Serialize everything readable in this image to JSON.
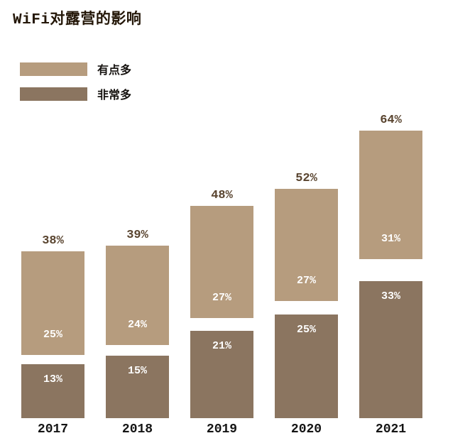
{
  "title": "WiFi对露营的影响",
  "legend": {
    "items": [
      {
        "label": "有点多",
        "color": "#b69c7e"
      },
      {
        "label": "非常多",
        "color": "#8b7560"
      }
    ]
  },
  "chart_data": {
    "type": "bar",
    "subtype": "stacked-with-gap",
    "title": "WiFi对露营的影响",
    "categories": [
      "2017",
      "2018",
      "2019",
      "2020",
      "2021"
    ],
    "series": [
      {
        "name": "有点多",
        "color": "#b69c7e",
        "values": [
          25,
          24,
          27,
          27,
          31
        ]
      },
      {
        "name": "非常多",
        "color": "#8b7560",
        "values": [
          13,
          15,
          21,
          25,
          33
        ]
      }
    ],
    "totals": [
      38,
      39,
      48,
      52,
      64
    ],
    "value_suffix": "%",
    "xlabel": "",
    "ylabel": "",
    "axes_hidden": true,
    "grid": false,
    "legend_position": "top-left",
    "value_labels": "inside-segments-and-total-above",
    "colors": {
      "background": "#ffffff",
      "title_text": "#241708",
      "total_label_text": "#5a4530",
      "year_label_text": "#141414",
      "segment_label_text": "#ffffff"
    }
  }
}
